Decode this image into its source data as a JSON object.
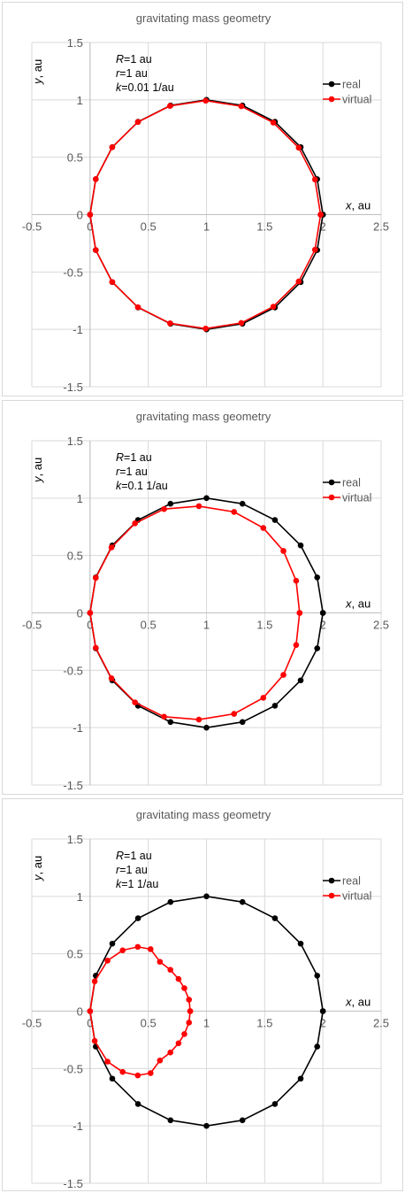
{
  "chart_data": [
    {
      "type": "scatter",
      "title": "gravitating mass geometry",
      "xlabel": "x, au",
      "ylabel": "y, au",
      "xlim": [
        -0.5,
        2.5
      ],
      "ylim": [
        -1.5,
        1.5
      ],
      "xticks": [
        "-0.5",
        "0",
        "0.5",
        "1",
        "1.5",
        "2",
        "2.5"
      ],
      "yticks": [
        "1.5",
        "1",
        "0.5",
        "0",
        "-0.5",
        "-1",
        "-1.5"
      ],
      "grid": true,
      "legend_position": "top-right",
      "annotation": {
        "R": "=1 au",
        "r": "=1 au",
        "k": "=0.01 1/au"
      },
      "series": [
        {
          "name": "real",
          "color": "#000000",
          "x": [
            2.0,
            1.951,
            1.809,
            1.588,
            1.309,
            1.0,
            0.691,
            0.412,
            0.191,
            0.049,
            0.0,
            0.049,
            0.191,
            0.412,
            0.691,
            1.0,
            1.309,
            1.588,
            1.809,
            1.951,
            2.0
          ],
          "y": [
            0.0,
            0.309,
            0.588,
            0.809,
            0.951,
            1.0,
            0.951,
            0.809,
            0.588,
            0.309,
            0.0,
            -0.309,
            -0.588,
            -0.809,
            -0.951,
            -1.0,
            -0.951,
            -0.809,
            -0.588,
            -0.309,
            0.0
          ]
        },
        {
          "name": "virtual",
          "color": "#ff0000",
          "x": [
            1.98,
            1.932,
            1.792,
            1.574,
            1.299,
            0.993,
            0.687,
            0.411,
            0.19,
            0.049,
            0.0,
            0.049,
            0.19,
            0.411,
            0.687,
            0.993,
            1.299,
            1.574,
            1.792,
            1.932,
            1.98
          ],
          "y": [
            0.0,
            0.306,
            0.583,
            0.802,
            0.944,
            0.993,
            0.947,
            0.807,
            0.587,
            0.309,
            0.0,
            -0.309,
            -0.587,
            -0.807,
            -0.947,
            -0.993,
            -0.944,
            -0.802,
            -0.583,
            -0.306,
            0.0
          ]
        }
      ]
    },
    {
      "type": "scatter",
      "title": "gravitating mass geometry",
      "xlabel": "x, au",
      "ylabel": "y, au",
      "xlim": [
        -0.5,
        2.5
      ],
      "ylim": [
        -1.5,
        1.5
      ],
      "xticks": [
        "-0.5",
        "0",
        "0.5",
        "1",
        "1.5",
        "2",
        "2.5"
      ],
      "yticks": [
        "1.5",
        "1",
        "0.5",
        "0",
        "-0.5",
        "-1",
        "-1.5"
      ],
      "grid": true,
      "legend_position": "top-right",
      "annotation": {
        "R": "=1 au",
        "r": "=1 au",
        "k": "=0.1 1/au"
      },
      "series": [
        {
          "name": "real",
          "color": "#000000",
          "x": [
            2.0,
            1.951,
            1.809,
            1.588,
            1.309,
            1.0,
            0.691,
            0.412,
            0.191,
            0.049,
            0.0,
            0.049,
            0.191,
            0.412,
            0.691,
            1.0,
            1.309,
            1.588,
            1.809,
            1.951,
            2.0
          ],
          "y": [
            0.0,
            0.309,
            0.588,
            0.809,
            0.951,
            1.0,
            0.951,
            0.809,
            0.588,
            0.309,
            0.0,
            -0.309,
            -0.588,
            -0.809,
            -0.951,
            -1.0,
            -0.951,
            -0.809,
            -0.588,
            -0.309,
            0.0
          ]
        },
        {
          "name": "virtual",
          "color": "#ff0000",
          "x": [
            1.8,
            1.77,
            1.661,
            1.488,
            1.237,
            0.935,
            0.636,
            0.386,
            0.184,
            0.049,
            0.0,
            0.049,
            0.184,
            0.386,
            0.636,
            0.935,
            1.237,
            1.488,
            1.661,
            1.77,
            1.8
          ],
          "y": [
            0.0,
            0.28,
            0.54,
            0.74,
            0.88,
            0.93,
            0.905,
            0.78,
            0.57,
            0.305,
            0.0,
            -0.305,
            -0.57,
            -0.78,
            -0.905,
            -0.93,
            -0.88,
            -0.74,
            -0.54,
            -0.28,
            0.0
          ]
        }
      ]
    },
    {
      "type": "scatter",
      "title": "gravitating mass geometry",
      "xlabel": "x, au",
      "ylabel": "y, au",
      "xlim": [
        -0.5,
        2.5
      ],
      "ylim": [
        -1.5,
        1.5
      ],
      "xticks": [
        "-0.5",
        "0",
        "0.5",
        "1",
        "1.5",
        "2",
        "2.5"
      ],
      "yticks": [
        "1.5",
        "1",
        "0.5",
        "0",
        "-0.5",
        "-1",
        "-1.5"
      ],
      "grid": true,
      "legend_position": "top-right",
      "annotation": {
        "R": "=1 au",
        "r": "=1 au",
        "k": "=1 1/au"
      },
      "series": [
        {
          "name": "real",
          "color": "#000000",
          "x": [
            2.0,
            1.951,
            1.809,
            1.588,
            1.309,
            1.0,
            0.691,
            0.412,
            0.191,
            0.049,
            0.0,
            0.049,
            0.191,
            0.412,
            0.691,
            1.0,
            1.309,
            1.588,
            1.809,
            1.951,
            2.0
          ],
          "y": [
            0.0,
            0.309,
            0.588,
            0.809,
            0.951,
            1.0,
            0.951,
            0.809,
            0.588,
            0.309,
            0.0,
            -0.309,
            -0.588,
            -0.809,
            -0.951,
            -1.0,
            -0.951,
            -0.809,
            -0.588,
            -0.309,
            0.0
          ]
        },
        {
          "name": "virtual",
          "color": "#ff0000",
          "x": [
            0.86,
            0.85,
            0.81,
            0.76,
            0.69,
            0.6,
            0.52,
            0.41,
            0.28,
            0.15,
            0.04,
            0.0,
            0.04,
            0.15,
            0.28,
            0.41,
            0.52,
            0.6,
            0.69,
            0.76,
            0.81,
            0.85,
            0.86
          ],
          "y": [
            0.0,
            0.1,
            0.2,
            0.28,
            0.36,
            0.43,
            0.54,
            0.56,
            0.53,
            0.44,
            0.26,
            0.0,
            -0.26,
            -0.44,
            -0.53,
            -0.56,
            -0.54,
            -0.43,
            -0.36,
            -0.28,
            -0.2,
            -0.1,
            0.0
          ]
        }
      ]
    }
  ]
}
